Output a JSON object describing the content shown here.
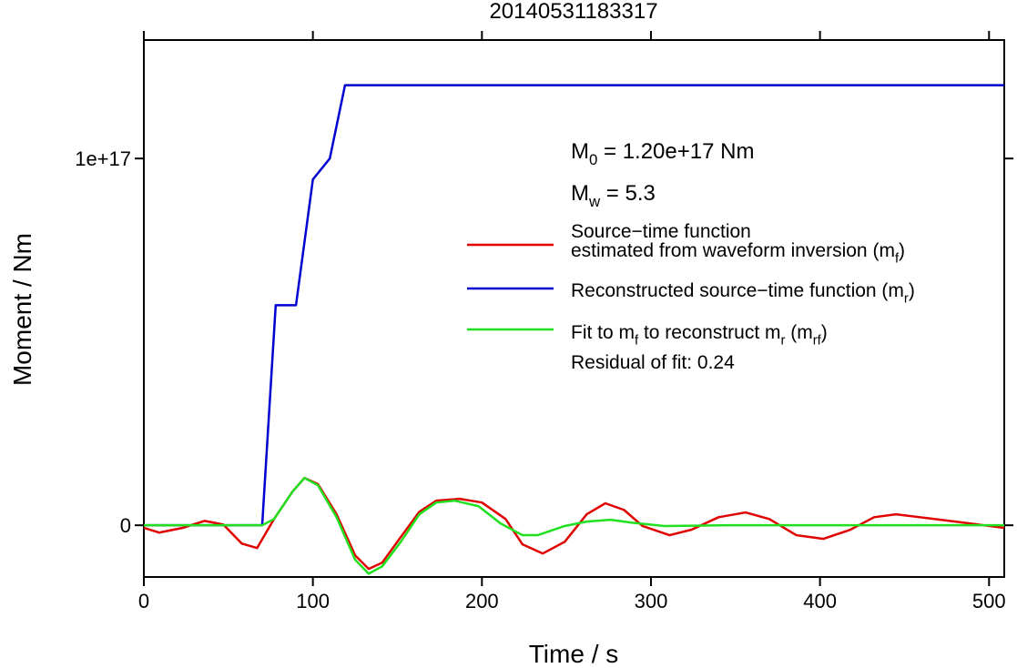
{
  "chart_data": {
    "type": "line",
    "title": "20140531183317",
    "xlabel": "Time / s",
    "ylabel": "Moment / Nm",
    "xlim": [
      0,
      509
    ],
    "ylim": [
      -1.41e+16,
      1.323e+17
    ],
    "xticks": [
      0,
      100,
      200,
      300,
      400,
      500
    ],
    "yticks": [
      0,
      {
        "value": 1e+17,
        "label": "1e+17"
      }
    ],
    "annotations": [
      [
        "M",
        "0",
        " = 1.20e+17 Nm"
      ],
      [
        "M",
        "w",
        " = 5.3"
      ]
    ],
    "note": "Residual of fit: 0.24",
    "series": [
      {
        "name": [
          [
            "Source−time function"
          ],
          [
            "estimated from waveform inversion (m",
            "f",
            ")"
          ]
        ],
        "color": "#e00000",
        "x": [
          0,
          9,
          23,
          36,
          47,
          58,
          67,
          77,
          88,
          95,
          103,
          114,
          125,
          133,
          141,
          152,
          163,
          173,
          187,
          200,
          214,
          224,
          236,
          249,
          262,
          273,
          284,
          295,
          311,
          324,
          340,
          356,
          370,
          386,
          402,
          418,
          432,
          445,
          459,
          480,
          509
        ],
        "values": [
          -700000000000000.0,
          -2000000000000000.0,
          -700000000000000.0,
          1200000000000000.0,
          200000000000000.0,
          -5000000000000000.0,
          -6200000000000000.0,
          1700000000000000.0,
          9200000000000000.0,
          1.29e+16,
          1.12e+16,
          3000000000000000.0,
          -8200000000000000.0,
          -1.19e+16,
          -1.02e+16,
          -3200000000000000.0,
          3700000000000000.0,
          6700000000000000.0,
          7200000000000000.0,
          6200000000000000.0,
          1700000000000000.0,
          -5200000000000000.0,
          -7700000000000000.0,
          -4500000000000000.0,
          3000000000000000.0,
          6000000000000000.0,
          4200000000000000.0,
          -200000000000000.0,
          -2700000000000000.0,
          -1200000000000000.0,
          2200000000000000.0,
          3500000000000000.0,
          1700000000000000.0,
          -2700000000000000.0,
          -3700000000000000.0,
          -1200000000000000.0,
          2200000000000000.0,
          3000000000000000.0,
          2200000000000000.0,
          1000000000000000.0,
          -700000000000000.0
        ]
      },
      {
        "name": [
          [
            "Reconstructed source−time function (m",
            "r",
            ")"
          ]
        ],
        "color": "#0000d0",
        "x": [
          0,
          70,
          78,
          90,
          100,
          110,
          119,
          509
        ],
        "values": [
          0,
          0,
          6e+16,
          6e+16,
          9.43e+16,
          1e+17,
          1.2e+17,
          1.2e+17
        ]
      },
      {
        "name": [
          [
            "Fit to m",
            "f",
            " to reconstruct m",
            "r",
            " (m",
            "rf",
            ")"
          ]
        ],
        "color": "#20e020",
        "x": [
          0,
          70,
          77,
          88,
          95,
          103,
          114,
          125,
          133,
          141,
          152,
          163,
          173,
          184,
          198,
          211,
          224,
          233,
          249,
          262,
          276,
          289,
          308,
          346,
          509
        ],
        "values": [
          0,
          0,
          1700000000000000.0,
          9200000000000000.0,
          1.29e+16,
          1.09e+16,
          2200000000000000.0,
          -9400000000000000.0,
          -1.32e+16,
          -1.12e+16,
          -4500000000000000.0,
          3000000000000000.0,
          6200000000000000.0,
          6700000000000000.0,
          5200000000000000.0,
          500000000000000.0,
          -2700000000000000.0,
          -2700000000000000.0,
          -200000000000000.0,
          1000000000000000.0,
          1500000000000000.0,
          700000000000000.0,
          -200000000000000.0,
          0,
          0
        ]
      }
    ]
  }
}
